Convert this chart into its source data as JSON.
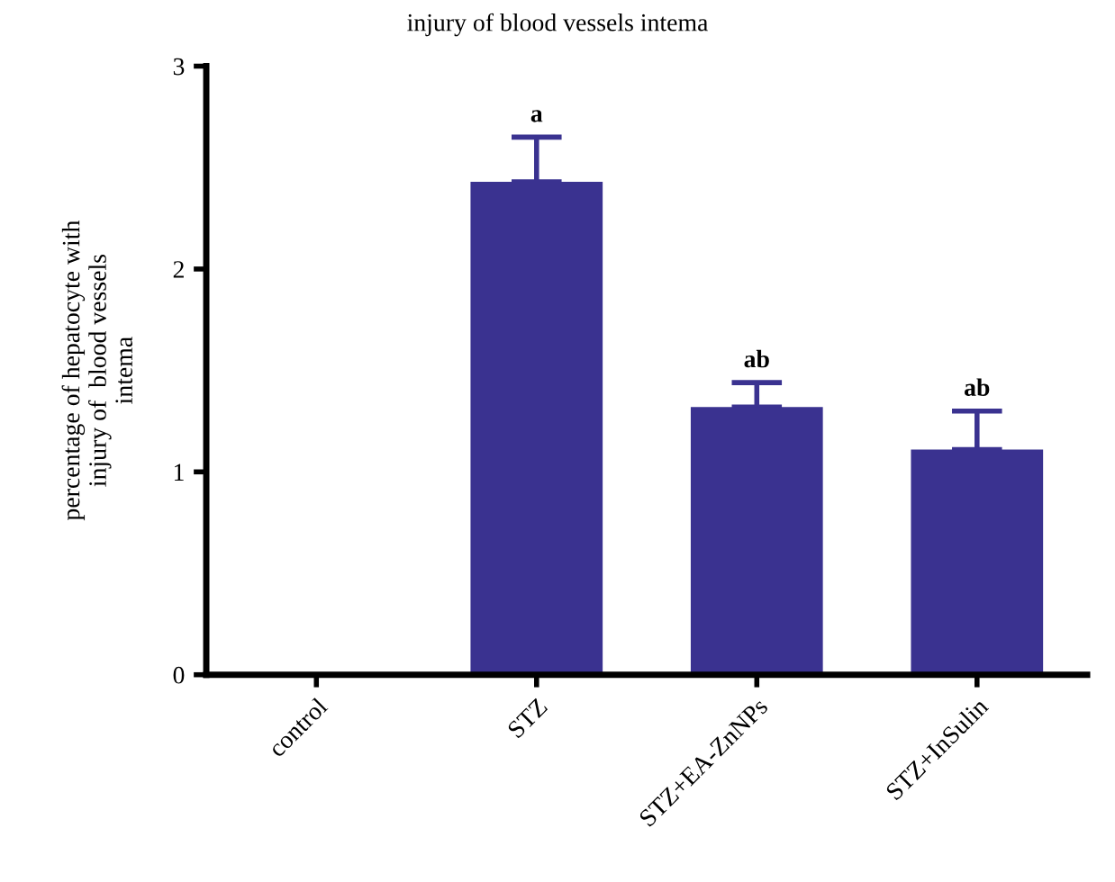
{
  "chart_data": {
    "type": "bar",
    "title": "injury of blood vessels intema",
    "ylabel": "percentage of hepatocyte with\ninjury of  blood vessels\nintema",
    "categories": [
      "control",
      "STZ",
      "STZ+EA-ZnNPs",
      "STZ+InSulin"
    ],
    "values": [
      0,
      2.43,
      1.32,
      1.11
    ],
    "color": "#3a3290",
    "errors": [
      null,
      [
        2.43,
        2.65
      ],
      [
        1.32,
        1.44
      ],
      [
        1.11,
        1.3
      ]
    ],
    "annotations": [
      {
        "text": "a",
        "x": "STZ",
        "y": 2.65
      },
      {
        "text": "ab",
        "x": "STZ+EA-ZnNPs",
        "y": 1.44
      },
      {
        "text": "ab",
        "x": "STZ+InSulin",
        "y": 1.3
      }
    ],
    "ylim": [
      0,
      3
    ],
    "yticks": [
      0,
      1,
      2,
      3
    ],
    "grid": false,
    "legend": false
  }
}
